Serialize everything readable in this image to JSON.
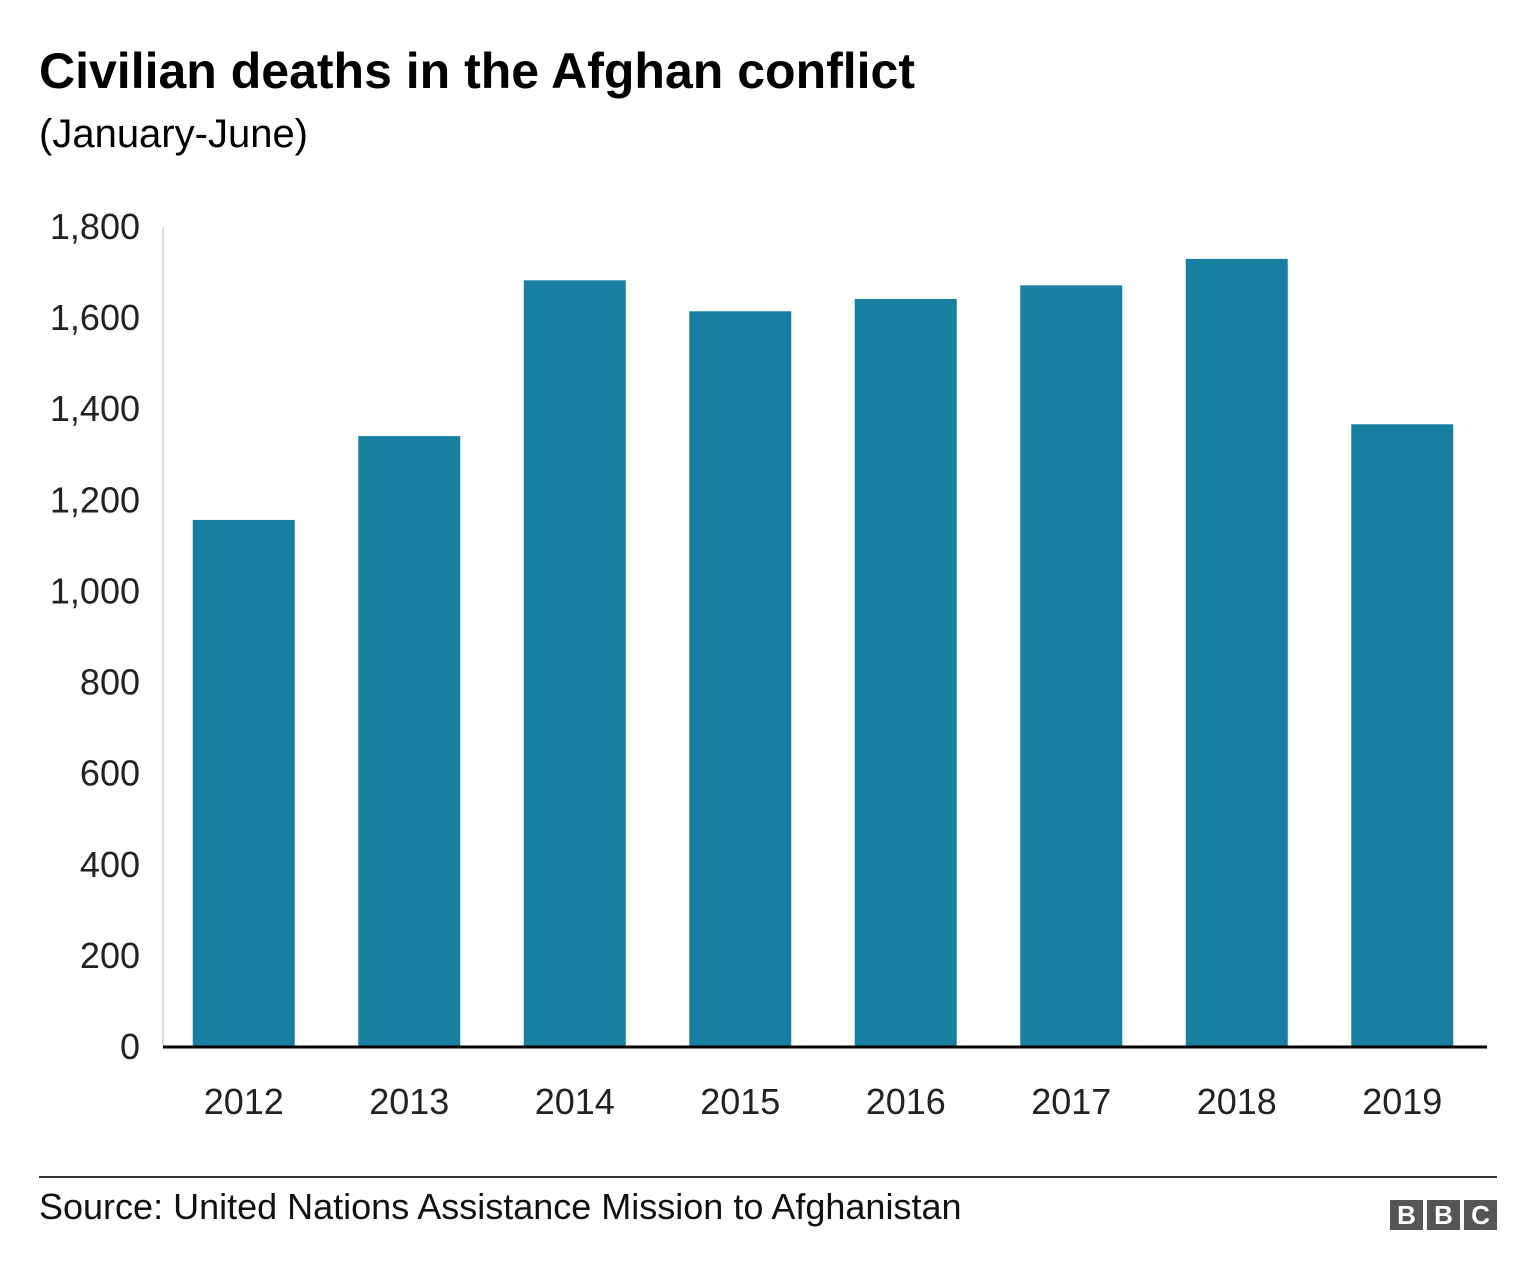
{
  "chart_data": {
    "type": "bar",
    "title": "Civilian deaths in the Afghan conflict",
    "subtitle": "(January-June)",
    "categories": [
      "2012",
      "2013",
      "2014",
      "2015",
      "2016",
      "2017",
      "2018",
      "2019"
    ],
    "values": [
      1157,
      1341,
      1683,
      1615,
      1642,
      1672,
      1730,
      1367
    ],
    "yticks": [
      "0",
      "200",
      "400",
      "600",
      "800",
      "1,000",
      "1,200",
      "1,400",
      "1,600",
      "1,800"
    ],
    "ylim": [
      0,
      1800
    ],
    "xlabel": "",
    "ylabel": "",
    "grid": false,
    "bar_color": "#1780a1"
  },
  "footer": {
    "source": "Source: United Nations Assistance Mission to Afghanistan",
    "logo": "BBC"
  }
}
